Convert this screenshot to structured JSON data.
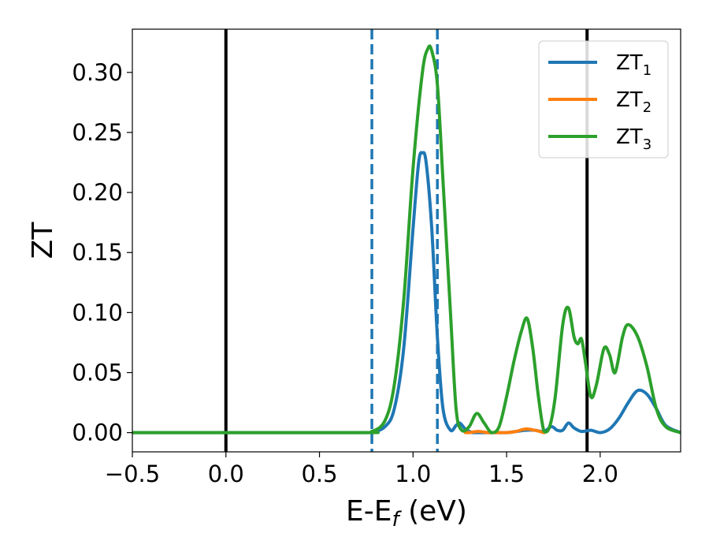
{
  "chart_data": {
    "type": "line",
    "xlabel": "E-E",
    "xlabel_sub": "f",
    "xlabel_unit": " (eV)",
    "ylabel": "ZT",
    "xlim": [
      -0.5,
      2.43
    ],
    "ylim": [
      -0.016,
      0.336
    ],
    "xticks": [
      -0.5,
      0.0,
      0.5,
      1.0,
      1.5,
      2.0
    ],
    "xtick_labels": [
      "−0.5",
      "0.0",
      "0.5",
      "1.0",
      "1.5",
      "2.0"
    ],
    "yticks": [
      0.0,
      0.05,
      0.1,
      0.15,
      0.2,
      0.25,
      0.3
    ],
    "ytick_labels": [
      "0.00",
      "0.05",
      "0.10",
      "0.15",
      "0.20",
      "0.25",
      "0.30"
    ],
    "grid": false,
    "legend_position": "top-right",
    "vertical_lines": [
      {
        "x": 0.0,
        "style": "solid",
        "color": "#000000"
      },
      {
        "x": 1.93,
        "style": "solid",
        "color": "#000000"
      },
      {
        "x": 0.78,
        "style": "dashed",
        "color": "#1f77b4"
      },
      {
        "x": 1.13,
        "style": "dashed",
        "color": "#1f77b4"
      }
    ],
    "series": [
      {
        "name": "ZT",
        "name_sub": "1",
        "color": "#1f77b4",
        "x": [
          -0.5,
          0.7,
          0.78,
          0.85,
          0.9,
          0.95,
          1.0,
          1.03,
          1.05,
          1.07,
          1.1,
          1.13,
          1.16,
          1.2,
          1.23,
          1.25,
          1.28,
          1.32,
          1.4,
          1.5,
          1.6,
          1.65,
          1.7,
          1.74,
          1.77,
          1.8,
          1.83,
          1.86,
          1.9,
          1.95,
          2.0,
          2.05,
          2.1,
          2.15,
          2.2,
          2.25,
          2.3,
          2.35,
          2.43
        ],
        "y": [
          0.0,
          0.0,
          0.0005,
          0.005,
          0.02,
          0.07,
          0.17,
          0.225,
          0.233,
          0.225,
          0.17,
          0.08,
          0.02,
          0.002,
          0.006,
          0.008,
          0.003,
          0.0,
          0.0,
          0.0,
          0.002,
          0.002,
          0.001,
          0.005,
          0.002,
          0.002,
          0.008,
          0.004,
          0.001,
          0.002,
          0.0,
          0.003,
          0.012,
          0.025,
          0.035,
          0.032,
          0.02,
          0.006,
          0.0
        ]
      },
      {
        "name": "ZT",
        "name_sub": "2",
        "color": "#ff7f0e",
        "x": [
          1.28,
          1.3,
          1.35,
          1.4,
          1.45,
          1.5,
          1.55,
          1.6,
          1.65,
          1.7
        ],
        "y": [
          0.0,
          0.0,
          0.001,
          0.0,
          0.0,
          0.0,
          0.001,
          0.003,
          0.002,
          0.0
        ]
      },
      {
        "name": "ZT",
        "name_sub": "3",
        "color": "#2ca02c",
        "x": [
          -0.5,
          0.7,
          0.78,
          0.85,
          0.9,
          0.95,
          1.0,
          1.05,
          1.08,
          1.1,
          1.13,
          1.16,
          1.2,
          1.23,
          1.26,
          1.3,
          1.34,
          1.38,
          1.42,
          1.46,
          1.5,
          1.54,
          1.58,
          1.61,
          1.64,
          1.67,
          1.7,
          1.73,
          1.76,
          1.8,
          1.83,
          1.86,
          1.88,
          1.9,
          1.92,
          1.95,
          1.98,
          2.02,
          2.05,
          2.08,
          2.12,
          2.15,
          2.2,
          2.25,
          2.3,
          2.35,
          2.43
        ],
        "y": [
          0.0,
          0.0,
          0.001,
          0.01,
          0.04,
          0.11,
          0.22,
          0.3,
          0.32,
          0.318,
          0.29,
          0.21,
          0.1,
          0.02,
          0.002,
          0.005,
          0.016,
          0.008,
          0.0,
          0.005,
          0.03,
          0.06,
          0.085,
          0.095,
          0.07,
          0.03,
          0.001,
          0.005,
          0.03,
          0.09,
          0.104,
          0.08,
          0.074,
          0.078,
          0.06,
          0.03,
          0.04,
          0.07,
          0.065,
          0.05,
          0.08,
          0.09,
          0.08,
          0.055,
          0.02,
          0.005,
          0.0
        ]
      }
    ]
  }
}
